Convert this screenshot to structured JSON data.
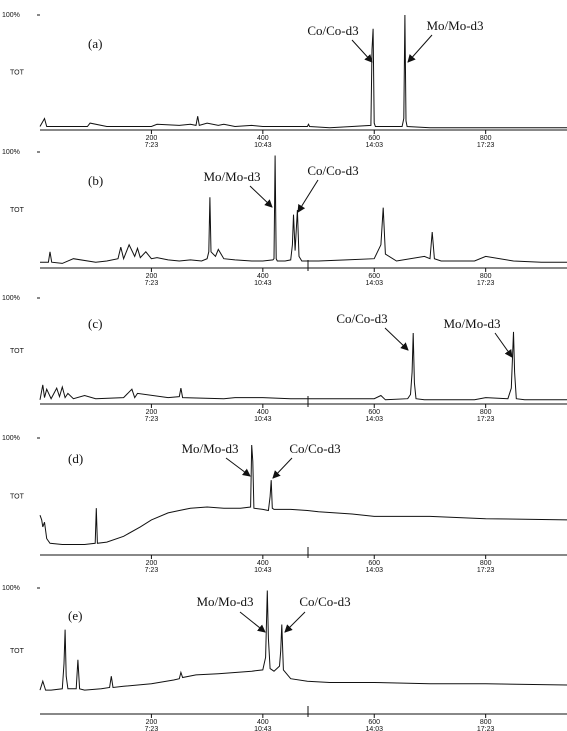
{
  "chart_data": [
    {
      "type": "line",
      "panel_label": "(a)",
      "ylabel": "TOT",
      "yticks": [
        {
          "value": 100,
          "label": "100%"
        }
      ],
      "ylim": [
        0,
        100
      ],
      "xlim": [
        0,
        946
      ],
      "xticks": [
        200,
        400,
        600,
        800
      ],
      "xtick_times": [
        "7:23",
        "10:43",
        "14:03",
        "17:23"
      ],
      "color": "#111111",
      "annotations": [
        "Co/Co-d3",
        "Mo/Mo-d3"
      ],
      "x": [
        0,
        8,
        12,
        30,
        60,
        85,
        90,
        120,
        150,
        200,
        210,
        250,
        270,
        280,
        283,
        286,
        300,
        320,
        330,
        350,
        380,
        400,
        450,
        480,
        482,
        484,
        520,
        560,
        594,
        596,
        598,
        600,
        602,
        630,
        650,
        653,
        655,
        657,
        659,
        700,
        760,
        820,
        880,
        946
      ],
      "values": [
        3,
        10,
        3,
        3,
        3,
        3,
        6,
        3,
        3,
        3,
        5,
        4,
        5,
        4,
        12,
        4,
        6,
        4,
        5,
        3,
        4,
        3,
        3,
        3,
        5,
        3,
        2,
        3,
        4,
        70,
        88,
        6,
        3,
        3,
        3,
        10,
        100,
        8,
        3,
        2,
        2,
        2,
        2,
        2
      ]
    },
    {
      "type": "line",
      "panel_label": "(b)",
      "ylabel": "TOT",
      "yticks": [
        {
          "value": 100,
          "label": "100%"
        }
      ],
      "ylim": [
        0,
        100
      ],
      "xlim": [
        0,
        946
      ],
      "xticks": [
        200,
        400,
        600,
        800
      ],
      "xtick_times": [
        "7:23",
        "10:43",
        "14:03",
        "17:23"
      ],
      "color": "#111111",
      "annotations": [
        "Mo/Mo-d3",
        "Co/Co-d3"
      ],
      "x": [
        0,
        15,
        18,
        21,
        40,
        60,
        100,
        120,
        140,
        145,
        150,
        160,
        170,
        175,
        180,
        190,
        200,
        210,
        230,
        250,
        270,
        290,
        300,
        303,
        305,
        307,
        315,
        320,
        330,
        350,
        380,
        400,
        418,
        420,
        422,
        424,
        426,
        440,
        450,
        453,
        455,
        458,
        462,
        465,
        470,
        500,
        550,
        600,
        612,
        616,
        620,
        640,
        690,
        700,
        704,
        708,
        720,
        780,
        800,
        850,
        900,
        946
      ],
      "values": [
        5,
        5,
        14,
        5,
        4,
        8,
        5,
        6,
        8,
        18,
        8,
        20,
        10,
        17,
        9,
        14,
        8,
        9,
        7,
        6,
        7,
        6,
        8,
        14,
        61,
        14,
        10,
        16,
        8,
        7,
        6,
        6,
        7,
        8,
        97,
        8,
        6,
        6,
        7,
        20,
        46,
        15,
        50,
        10,
        6,
        6,
        7,
        8,
        20,
        52,
        12,
        6,
        10,
        8,
        31,
        8,
        6,
        6,
        10,
        6,
        5,
        5
      ]
    },
    {
      "type": "line",
      "panel_label": "(c)",
      "ylabel": "TOT",
      "yticks": [
        {
          "value": 100,
          "label": "100%"
        }
      ],
      "ylim": [
        0,
        100
      ],
      "xlim": [
        0,
        946
      ],
      "xticks": [
        200,
        400,
        600,
        800
      ],
      "xtick_times": [
        "7:23",
        "10:43",
        "14:03",
        "17:23"
      ],
      "color": "#111111",
      "annotations": [
        "Co/Co-d3",
        "Mo/Mo-d3"
      ],
      "x": [
        0,
        5,
        8,
        12,
        20,
        30,
        35,
        40,
        45,
        50,
        60,
        80,
        100,
        150,
        165,
        170,
        175,
        230,
        250,
        253,
        256,
        330,
        350,
        400,
        450,
        500,
        600,
        612,
        620,
        660,
        665,
        668,
        670,
        672,
        675,
        690,
        780,
        800,
        840,
        846,
        850,
        852,
        855,
        870,
        946
      ],
      "values": [
        4,
        18,
        6,
        14,
        5,
        15,
        7,
        16,
        6,
        10,
        5,
        8,
        5,
        6,
        14,
        6,
        10,
        6,
        7,
        15,
        6,
        5,
        6,
        6,
        5,
        5,
        5,
        8,
        4,
        5,
        9,
        30,
        67,
        20,
        5,
        4,
        4,
        6,
        5,
        15,
        68,
        30,
        5,
        4,
        4
      ]
    },
    {
      "type": "line",
      "panel_label": "(d)",
      "ylabel": "TOT",
      "yticks": [
        {
          "value": 100,
          "label": "100%"
        }
      ],
      "ylim": [
        0,
        100
      ],
      "xlim": [
        0,
        946
      ],
      "xticks": [
        200,
        400,
        600,
        800
      ],
      "xtick_times": [
        "7:23",
        "10:43",
        "14:03",
        "17:23"
      ],
      "color": "#111111",
      "annotations": [
        "Mo/Mo-d3",
        "Co/Co-d3"
      ],
      "x": [
        0,
        3,
        5,
        8,
        12,
        18,
        40,
        80,
        99,
        101,
        103,
        120,
        150,
        180,
        200,
        230,
        250,
        270,
        300,
        330,
        360,
        378,
        380,
        382,
        384,
        400,
        410,
        413,
        415,
        417,
        420,
        450,
        480,
        500,
        560,
        600,
        700,
        800,
        946
      ],
      "values": [
        34,
        30,
        24,
        28,
        14,
        10,
        9,
        9,
        10,
        40,
        10,
        11,
        16,
        24,
        30,
        36,
        38,
        40,
        41,
        40,
        40,
        41,
        94,
        80,
        40,
        39,
        38,
        50,
        64,
        40,
        39,
        39,
        38,
        37,
        35,
        33,
        33,
        31,
        30
      ]
    },
    {
      "type": "line",
      "panel_label": "(e)",
      "ylabel": "TOT",
      "yticks": [
        {
          "value": 100,
          "label": "100%"
        }
      ],
      "ylim": [
        0,
        100
      ],
      "xlim": [
        0,
        946
      ],
      "xticks": [
        200,
        400,
        600,
        800
      ],
      "xtick_times": [
        "7:23",
        "10:43",
        "14:03",
        "17:23"
      ],
      "color": "#111111",
      "annotations": [
        "Mo/Mo-d3",
        "Co/Co-d3"
      ],
      "x": [
        0,
        5,
        10,
        20,
        40,
        43,
        45,
        47,
        50,
        65,
        68,
        71,
        80,
        110,
        125,
        128,
        131,
        150,
        200,
        240,
        250,
        253,
        256,
        280,
        320,
        380,
        400,
        405,
        408,
        410,
        413,
        420,
        430,
        432,
        434,
        437,
        450,
        480,
        520,
        600,
        700,
        800,
        946
      ],
      "values": [
        19,
        26,
        19,
        19,
        20,
        40,
        67,
        30,
        20,
        20,
        43,
        20,
        19,
        20,
        21,
        30,
        21,
        22,
        24,
        27,
        28,
        33,
        29,
        31,
        32,
        34,
        35,
        45,
        98,
        60,
        36,
        34,
        38,
        50,
        71,
        35,
        28,
        26,
        25,
        25,
        24,
        24,
        23
      ]
    }
  ]
}
